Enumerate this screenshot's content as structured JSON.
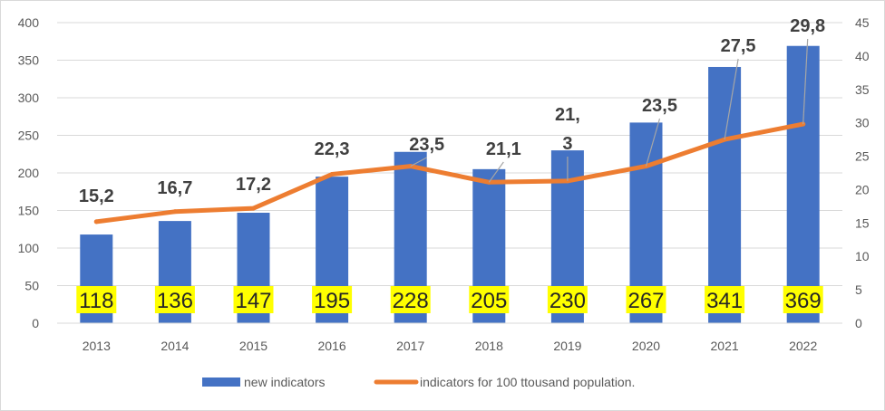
{
  "chart_data": {
    "type": "bar",
    "categories": [
      "2013",
      "2014",
      "2015",
      "2016",
      "2017",
      "2018",
      "2019",
      "2020",
      "2021",
      "2022"
    ],
    "series": [
      {
        "name": "new indicators",
        "type": "bar",
        "axis": "left",
        "color": "#4472c4",
        "values": [
          118,
          136,
          147,
          195,
          228,
          205,
          230,
          267,
          341,
          369
        ],
        "labels": [
          "118",
          "136",
          "147",
          "195",
          "228",
          "205",
          "230",
          "267",
          "341",
          "369"
        ],
        "label_highlight": "#ffff00"
      },
      {
        "name": "indicators for 100 ttousand population.",
        "type": "line",
        "axis": "right",
        "color": "#ed7d31",
        "values": [
          15.2,
          16.7,
          17.2,
          22.3,
          23.5,
          21.1,
          21.3,
          23.5,
          27.5,
          29.8
        ],
        "labels": [
          "15,2",
          "16,7",
          "17,2",
          "22,3",
          "23,5",
          "21,1",
          "21,\n3",
          "23,5",
          "27,5",
          "29,8"
        ]
      }
    ],
    "y_left": {
      "min": 0,
      "max": 400,
      "step": 50,
      "ticks": [
        "0",
        "50",
        "100",
        "150",
        "200",
        "250",
        "300",
        "350",
        "400"
      ]
    },
    "y_right": {
      "min": 0,
      "max": 45,
      "step": 5,
      "ticks": [
        "0",
        "5",
        "10",
        "15",
        "20",
        "25",
        "30",
        "35",
        "40",
        "45"
      ]
    },
    "grid": true,
    "legend_position": "bottom",
    "title": "",
    "xlabel": "",
    "ylabel": ""
  }
}
